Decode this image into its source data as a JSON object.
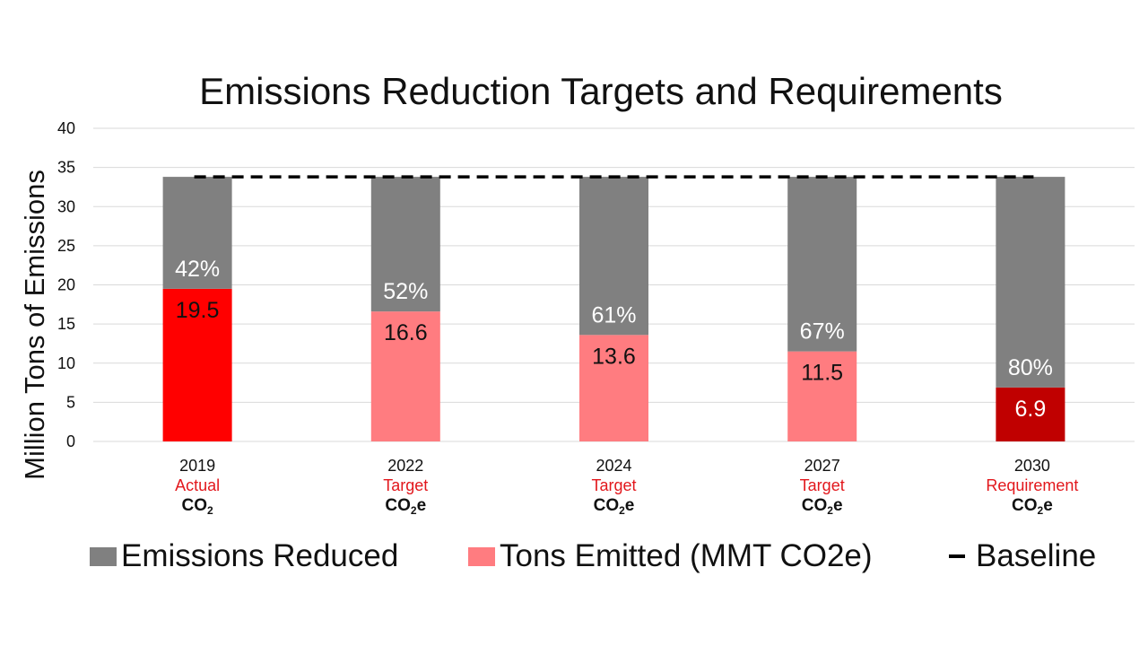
{
  "chart_data": {
    "type": "bar",
    "stacked": true,
    "title": "Emissions Reduction Targets and Requirements",
    "ylabel": "Million Tons of Emissions",
    "ylim": [
      0,
      40
    ],
    "yticks": [
      0,
      5,
      10,
      15,
      20,
      25,
      30,
      35,
      40
    ],
    "grid": true,
    "categories": [
      {
        "year": "2019",
        "kind": "Actual",
        "gas": "CO",
        "gas_sub": "2",
        "gas_suffix": ""
      },
      {
        "year": "2022",
        "kind": "Target",
        "gas": "CO",
        "gas_sub": "2",
        "gas_suffix": "e"
      },
      {
        "year": "2024",
        "kind": "Target",
        "gas": "CO",
        "gas_sub": "2",
        "gas_suffix": "e"
      },
      {
        "year": "2027",
        "kind": "Target",
        "gas": "CO",
        "gas_sub": "2",
        "gas_suffix": "e"
      },
      {
        "year": "2030",
        "kind": "Requirement",
        "gas": "CO",
        "gas_sub": "2",
        "gas_suffix": "e"
      }
    ],
    "series": [
      {
        "name": "Tons Emitted (MMT CO2e)",
        "values": [
          19.5,
          16.6,
          13.6,
          11.5,
          6.9
        ],
        "labels": [
          "19.5",
          "16.6",
          "13.6",
          "11.5",
          "6.9"
        ],
        "colors": [
          "#ff0000",
          "#ff7c80",
          "#ff7c80",
          "#ff7c80",
          "#c00000"
        ],
        "label_colors": [
          "#111111",
          "#111111",
          "#111111",
          "#111111",
          "#ffffff"
        ]
      },
      {
        "name": "Emissions Reduced",
        "values": [
          14.3,
          17.2,
          20.2,
          22.3,
          26.9
        ],
        "labels": [
          "42%",
          "52%",
          "61%",
          "67%",
          "80%"
        ],
        "color": "#808080",
        "label_color": "#ffffff"
      }
    ],
    "baseline": {
      "name": "Baseline",
      "value": 33.8,
      "color": "#000000"
    },
    "legend": {
      "position": "bottom",
      "items": [
        {
          "label": "Emissions Reduced",
          "color": "#808080",
          "kind": "swatch"
        },
        {
          "label": "Tons Emitted (MMT CO2e)",
          "color": "#ff7c80",
          "kind": "swatch"
        },
        {
          "label": "Baseline",
          "color": "#000000",
          "kind": "dash"
        }
      ]
    }
  }
}
